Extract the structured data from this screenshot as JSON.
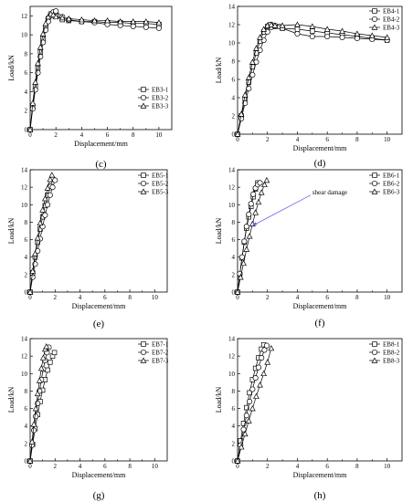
{
  "figure": {
    "panels": [
      {
        "id": "c",
        "caption": "(c)",
        "xlabel": "Displacement/mm",
        "ylabel": "Load/kN",
        "legend": [
          "EB3-1",
          "EB3-2",
          "EB3-3"
        ],
        "xticks": [
          "0",
          "2",
          "4",
          "6",
          "8",
          "10"
        ],
        "yticks": [
          "0",
          "2",
          "4",
          "6",
          "8",
          "10",
          "12"
        ]
      },
      {
        "id": "d",
        "caption": "(d)",
        "xlabel": "Displacement/mm",
        "ylabel": "Load/kN",
        "legend": [
          "EB4-1",
          "EB4-2",
          "EB4-3"
        ],
        "xticks": [
          "0",
          "2",
          "4",
          "6",
          "8",
          "10"
        ],
        "yticks": [
          "0",
          "2",
          "4",
          "6",
          "8",
          "10",
          "12",
          "14"
        ]
      },
      {
        "id": "e",
        "caption": "(e)",
        "xlabel": "Displacement/mm",
        "ylabel": "Load/kN",
        "legend": [
          "EB5-1",
          "EB5-2",
          "EB5-3"
        ],
        "xticks": [
          "0",
          "2",
          "4",
          "6",
          "8",
          "10"
        ],
        "yticks": [
          "0",
          "2",
          "4",
          "6",
          "8",
          "10",
          "12",
          "14"
        ]
      },
      {
        "id": "f",
        "caption": "(f)",
        "xlabel": "Displacement/mm",
        "ylabel": "Load/kN",
        "legend": [
          "EB6-1",
          "EB6-2",
          "EB6-3"
        ],
        "xticks": [
          "0",
          "2",
          "4",
          "6",
          "8",
          "10"
        ],
        "yticks": [
          "0",
          "2",
          "4",
          "6",
          "8",
          "10",
          "12",
          "14"
        ],
        "annotation": "shear damage"
      },
      {
        "id": "g",
        "caption": "(g)",
        "xlabel": "Displacement/mm",
        "ylabel": "Load/kN",
        "legend": [
          "EB7-1",
          "EB7-2",
          "EB7-3"
        ],
        "xticks": [
          "0",
          "2",
          "4",
          "6",
          "8",
          "10"
        ],
        "yticks": [
          "0",
          "2",
          "4",
          "6",
          "8",
          "10",
          "12",
          "14"
        ]
      },
      {
        "id": "h",
        "caption": "(h)",
        "xlabel": "Displacement/mm",
        "ylabel": "Load/kN",
        "legend": [
          "EB8-1",
          "EB8-2",
          "EB8-3"
        ],
        "xticks": [
          "0",
          "2",
          "4",
          "6",
          "8",
          "10"
        ],
        "yticks": [
          "0",
          "2",
          "4",
          "6",
          "8",
          "10",
          "12",
          "14"
        ]
      }
    ]
  },
  "chart_data": [
    {
      "type": "line",
      "panel": "c",
      "xlabel": "Displacement/mm",
      "ylabel": "Load/kN",
      "xlim": [
        0,
        11
      ],
      "ylim": [
        0,
        13
      ],
      "series": [
        {
          "name": "EB3-1",
          "marker": "square",
          "x": [
            0,
            0.2,
            0.4,
            0.6,
            0.8,
            1.0,
            1.2,
            1.4,
            1.6,
            1.8,
            2.0,
            2.5,
            3,
            4,
            5,
            6,
            7,
            8,
            9,
            10
          ],
          "y": [
            0,
            2.5,
            4.6,
            6.5,
            8.2,
            9.6,
            10.8,
            11.7,
            12.2,
            12.3,
            12.0,
            11.6,
            11.5,
            11.4,
            11.4,
            11.3,
            11.3,
            11.2,
            11.2,
            11.1
          ]
        },
        {
          "name": "EB3-2",
          "marker": "circle",
          "x": [
            0,
            0.2,
            0.4,
            0.6,
            0.8,
            1.0,
            1.2,
            1.4,
            1.6,
            1.8,
            2.0,
            2.5,
            3,
            4,
            5,
            6,
            7,
            8,
            9,
            10
          ],
          "y": [
            0,
            2.2,
            4.2,
            6.0,
            7.7,
            9.2,
            10.5,
            11.4,
            12.0,
            12.4,
            12.5,
            11.9,
            11.6,
            11.4,
            11.3,
            11.1,
            11.0,
            10.9,
            10.8,
            10.7
          ]
        },
        {
          "name": "EB3-3",
          "marker": "triangle",
          "x": [
            0,
            0.2,
            0.4,
            0.6,
            0.8,
            1.0,
            1.2,
            1.4,
            1.6,
            1.8,
            2.0,
            2.5,
            3,
            4,
            5,
            6,
            7,
            8,
            9,
            10
          ],
          "y": [
            0,
            2.8,
            5.0,
            7.0,
            8.7,
            10.1,
            11.2,
            11.9,
            12.2,
            12.1,
            11.9,
            11.8,
            11.7,
            11.6,
            11.5,
            11.5,
            11.4,
            11.4,
            11.4,
            11.3
          ]
        }
      ]
    },
    {
      "type": "line",
      "panel": "d",
      "xlabel": "Displacement/mm",
      "ylabel": "Load/kN",
      "xlim": [
        0,
        11
      ],
      "ylim": [
        0,
        14
      ],
      "series": [
        {
          "name": "EB4-1",
          "marker": "square",
          "x": [
            0,
            0.25,
            0.5,
            0.75,
            1.0,
            1.25,
            1.5,
            1.75,
            2.0,
            2.2,
            2.5,
            3,
            4,
            5,
            6,
            7,
            8,
            9,
            10
          ],
          "y": [
            0,
            2.0,
            3.9,
            5.7,
            7.4,
            8.9,
            10.2,
            11.2,
            11.8,
            12.0,
            11.8,
            11.6,
            11.5,
            11.3,
            11.1,
            10.9,
            10.7,
            10.5,
            10.3
          ]
        },
        {
          "name": "EB4-2",
          "marker": "circle",
          "x": [
            0,
            0.25,
            0.5,
            0.75,
            1.0,
            1.25,
            1.5,
            1.75,
            2.0,
            2.25,
            2.5,
            2.8,
            3,
            4,
            5,
            6,
            7,
            8,
            9,
            10
          ],
          "y": [
            0,
            1.7,
            3.4,
            5.0,
            6.5,
            7.9,
            9.2,
            10.3,
            11.2,
            11.7,
            11.9,
            11.8,
            11.6,
            11.0,
            10.7,
            10.7,
            10.6,
            10.5,
            10.4,
            10.3
          ]
        },
        {
          "name": "EB4-3",
          "marker": "triangle",
          "x": [
            0,
            0.25,
            0.5,
            0.75,
            1.0,
            1.25,
            1.5,
            1.75,
            2.0,
            2.25,
            2.5,
            3,
            4,
            5,
            6,
            7,
            8,
            9,
            10
          ],
          "y": [
            0,
            2.2,
            4.3,
            6.2,
            7.9,
            9.4,
            10.6,
            11.5,
            11.9,
            12.0,
            11.9,
            11.9,
            12.0,
            11.8,
            11.5,
            11.3,
            11.0,
            10.8,
            10.6
          ]
        }
      ]
    },
    {
      "type": "line",
      "panel": "e",
      "xlabel": "Displacement/mm",
      "ylabel": "Load/kN",
      "xlim": [
        0,
        11
      ],
      "ylim": [
        0,
        14
      ],
      "series": [
        {
          "name": "EB5-1",
          "marker": "square",
          "x": [
            0,
            0.2,
            0.4,
            0.6,
            0.8,
            1.0,
            1.2,
            1.4,
            1.6,
            1.8
          ],
          "y": [
            0,
            2.2,
            4.0,
            5.7,
            7.2,
            8.6,
            9.9,
            11.1,
            12.1,
            12.9
          ]
        },
        {
          "name": "EB5-2",
          "marker": "circle",
          "x": [
            0,
            0.2,
            0.4,
            0.6,
            0.8,
            1.0,
            1.2,
            1.4,
            1.6,
            1.8,
            2.0
          ],
          "y": [
            0,
            1.7,
            3.2,
            4.7,
            6.1,
            7.5,
            8.8,
            10.0,
            11.1,
            12.0,
            12.8
          ]
        },
        {
          "name": "EB5-3",
          "marker": "triangle",
          "x": [
            0,
            0.2,
            0.4,
            0.6,
            0.8,
            1.0,
            1.2,
            1.4,
            1.6,
            1.75
          ],
          "y": [
            0,
            2.4,
            4.4,
            6.2,
            7.9,
            9.4,
            10.7,
            11.9,
            12.9,
            13.4
          ]
        }
      ]
    },
    {
      "type": "line",
      "panel": "f",
      "xlabel": "Displacement/mm",
      "ylabel": "Load/kN",
      "xlim": [
        0,
        11
      ],
      "ylim": [
        0,
        14
      ],
      "series": [
        {
          "name": "EB6-1",
          "marker": "square",
          "x": [
            0,
            0.15,
            0.3,
            0.45,
            0.6,
            0.75,
            0.9,
            1.05,
            1.2,
            1.35
          ],
          "y": [
            0,
            2.0,
            3.9,
            5.7,
            7.3,
            8.6,
            9.8,
            10.9,
            11.8,
            12.5
          ]
        },
        {
          "name": "EB6-2",
          "marker": "circle",
          "x": [
            0,
            0.15,
            0.3,
            0.45,
            0.6,
            0.75,
            0.9,
            1.05,
            1.2,
            1.35,
            1.5
          ],
          "y": [
            0,
            2.1,
            4.0,
            5.8,
            7.5,
            8.9,
            10.1,
            11.2,
            11.9,
            12.3,
            12.5
          ]
        },
        {
          "name": "EB6-3",
          "marker": "triangle",
          "x": [
            0,
            0.2,
            0.4,
            0.6,
            0.8,
            1.0,
            1.2,
            1.4,
            1.6,
            1.8,
            1.95
          ],
          "y": [
            0,
            1.7,
            3.3,
            4.9,
            6.4,
            7.8,
            9.1,
            10.3,
            11.4,
            12.3,
            12.8
          ]
        }
      ]
    },
    {
      "type": "line",
      "panel": "g",
      "xlabel": "Displacement/mm",
      "ylabel": "Load/kN",
      "xlim": [
        0,
        11
      ],
      "ylim": [
        0,
        14
      ],
      "series": [
        {
          "name": "EB7-1",
          "marker": "square",
          "x": [
            0,
            0.2,
            0.4,
            0.6,
            0.8,
            1.0,
            1.2,
            1.4,
            1.6,
            1.8,
            1.95
          ],
          "y": [
            0,
            1.9,
            3.7,
            5.3,
            6.8,
            8.1,
            9.3,
            10.4,
            11.3,
            12.0,
            12.4
          ]
        },
        {
          "name": "EB7-2",
          "marker": "circle",
          "x": [
            0,
            0.15,
            0.3,
            0.45,
            0.6,
            0.75,
            0.9,
            1.05,
            1.2,
            1.35,
            1.5
          ],
          "y": [
            0,
            1.8,
            3.5,
            5.1,
            6.6,
            8.0,
            9.3,
            10.5,
            11.5,
            12.4,
            13.0
          ]
        },
        {
          "name": "EB7-3",
          "marker": "triangle",
          "x": [
            0,
            0.15,
            0.3,
            0.45,
            0.6,
            0.75,
            0.9,
            1.05,
            1.2,
            1.3
          ],
          "y": [
            0,
            2.2,
            4.2,
            6.0,
            7.7,
            9.2,
            10.6,
            11.8,
            12.8,
            13.1
          ]
        }
      ]
    },
    {
      "type": "line",
      "panel": "h",
      "xlabel": "Displacement/mm",
      "ylabel": "Load/kN",
      "xlim": [
        0,
        11
      ],
      "ylim": [
        0,
        14
      ],
      "series": [
        {
          "name": "EB8-1",
          "marker": "square",
          "x": [
            0,
            0.2,
            0.4,
            0.6,
            0.8,
            1.0,
            1.2,
            1.4,
            1.6,
            1.75
          ],
          "y": [
            0,
            2.3,
            4.3,
            6.1,
            7.8,
            9.3,
            10.6,
            11.8,
            12.8,
            13.3
          ]
        },
        {
          "name": "EB8-2",
          "marker": "circle",
          "x": [
            0,
            0.2,
            0.4,
            0.6,
            0.8,
            1.0,
            1.2,
            1.4,
            1.6,
            1.8,
            1.95
          ],
          "y": [
            0,
            1.8,
            3.6,
            5.2,
            6.8,
            8.2,
            9.5,
            10.7,
            11.8,
            12.7,
            13.2
          ]
        },
        {
          "name": "EB8-3",
          "marker": "triangle",
          "x": [
            0,
            0.25,
            0.5,
            0.75,
            1.0,
            1.25,
            1.5,
            1.75,
            2.0,
            2.25
          ],
          "y": [
            0,
            1.6,
            3.1,
            4.6,
            6.0,
            7.4,
            8.7,
            10.0,
            11.3,
            12.9
          ]
        }
      ]
    }
  ]
}
